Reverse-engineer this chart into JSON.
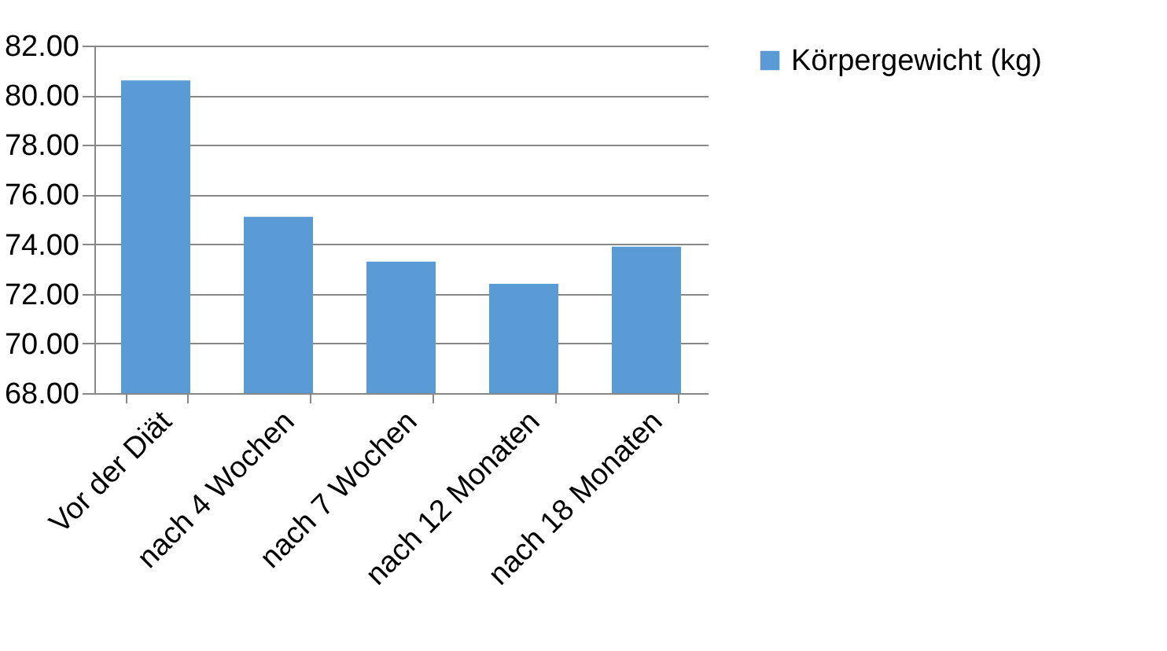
{
  "chart_data": {
    "type": "bar",
    "categories": [
      "Vor der Diät",
      "nach 4 Wochen",
      "nach 7 Wochen",
      "nach 12 Monaten",
      "nach 18 Monaten"
    ],
    "series": [
      {
        "name": "Körpergewicht (kg)",
        "color": "#5b9bd5",
        "values": [
          80.6,
          75.1,
          73.3,
          72.4,
          73.9
        ]
      }
    ],
    "ylim": [
      68,
      82
    ],
    "yticks": [
      {
        "value": 68,
        "label": "68.00"
      },
      {
        "value": 70,
        "label": "70.00"
      },
      {
        "value": 72,
        "label": "72.00"
      },
      {
        "value": 74,
        "label": "74.00"
      },
      {
        "value": 76,
        "label": "76.00"
      },
      {
        "value": 78,
        "label": "78.00"
      },
      {
        "value": 80,
        "label": "80.00"
      },
      {
        "value": 82,
        "label": "82.00"
      }
    ],
    "grid": "y",
    "legend": "right"
  }
}
